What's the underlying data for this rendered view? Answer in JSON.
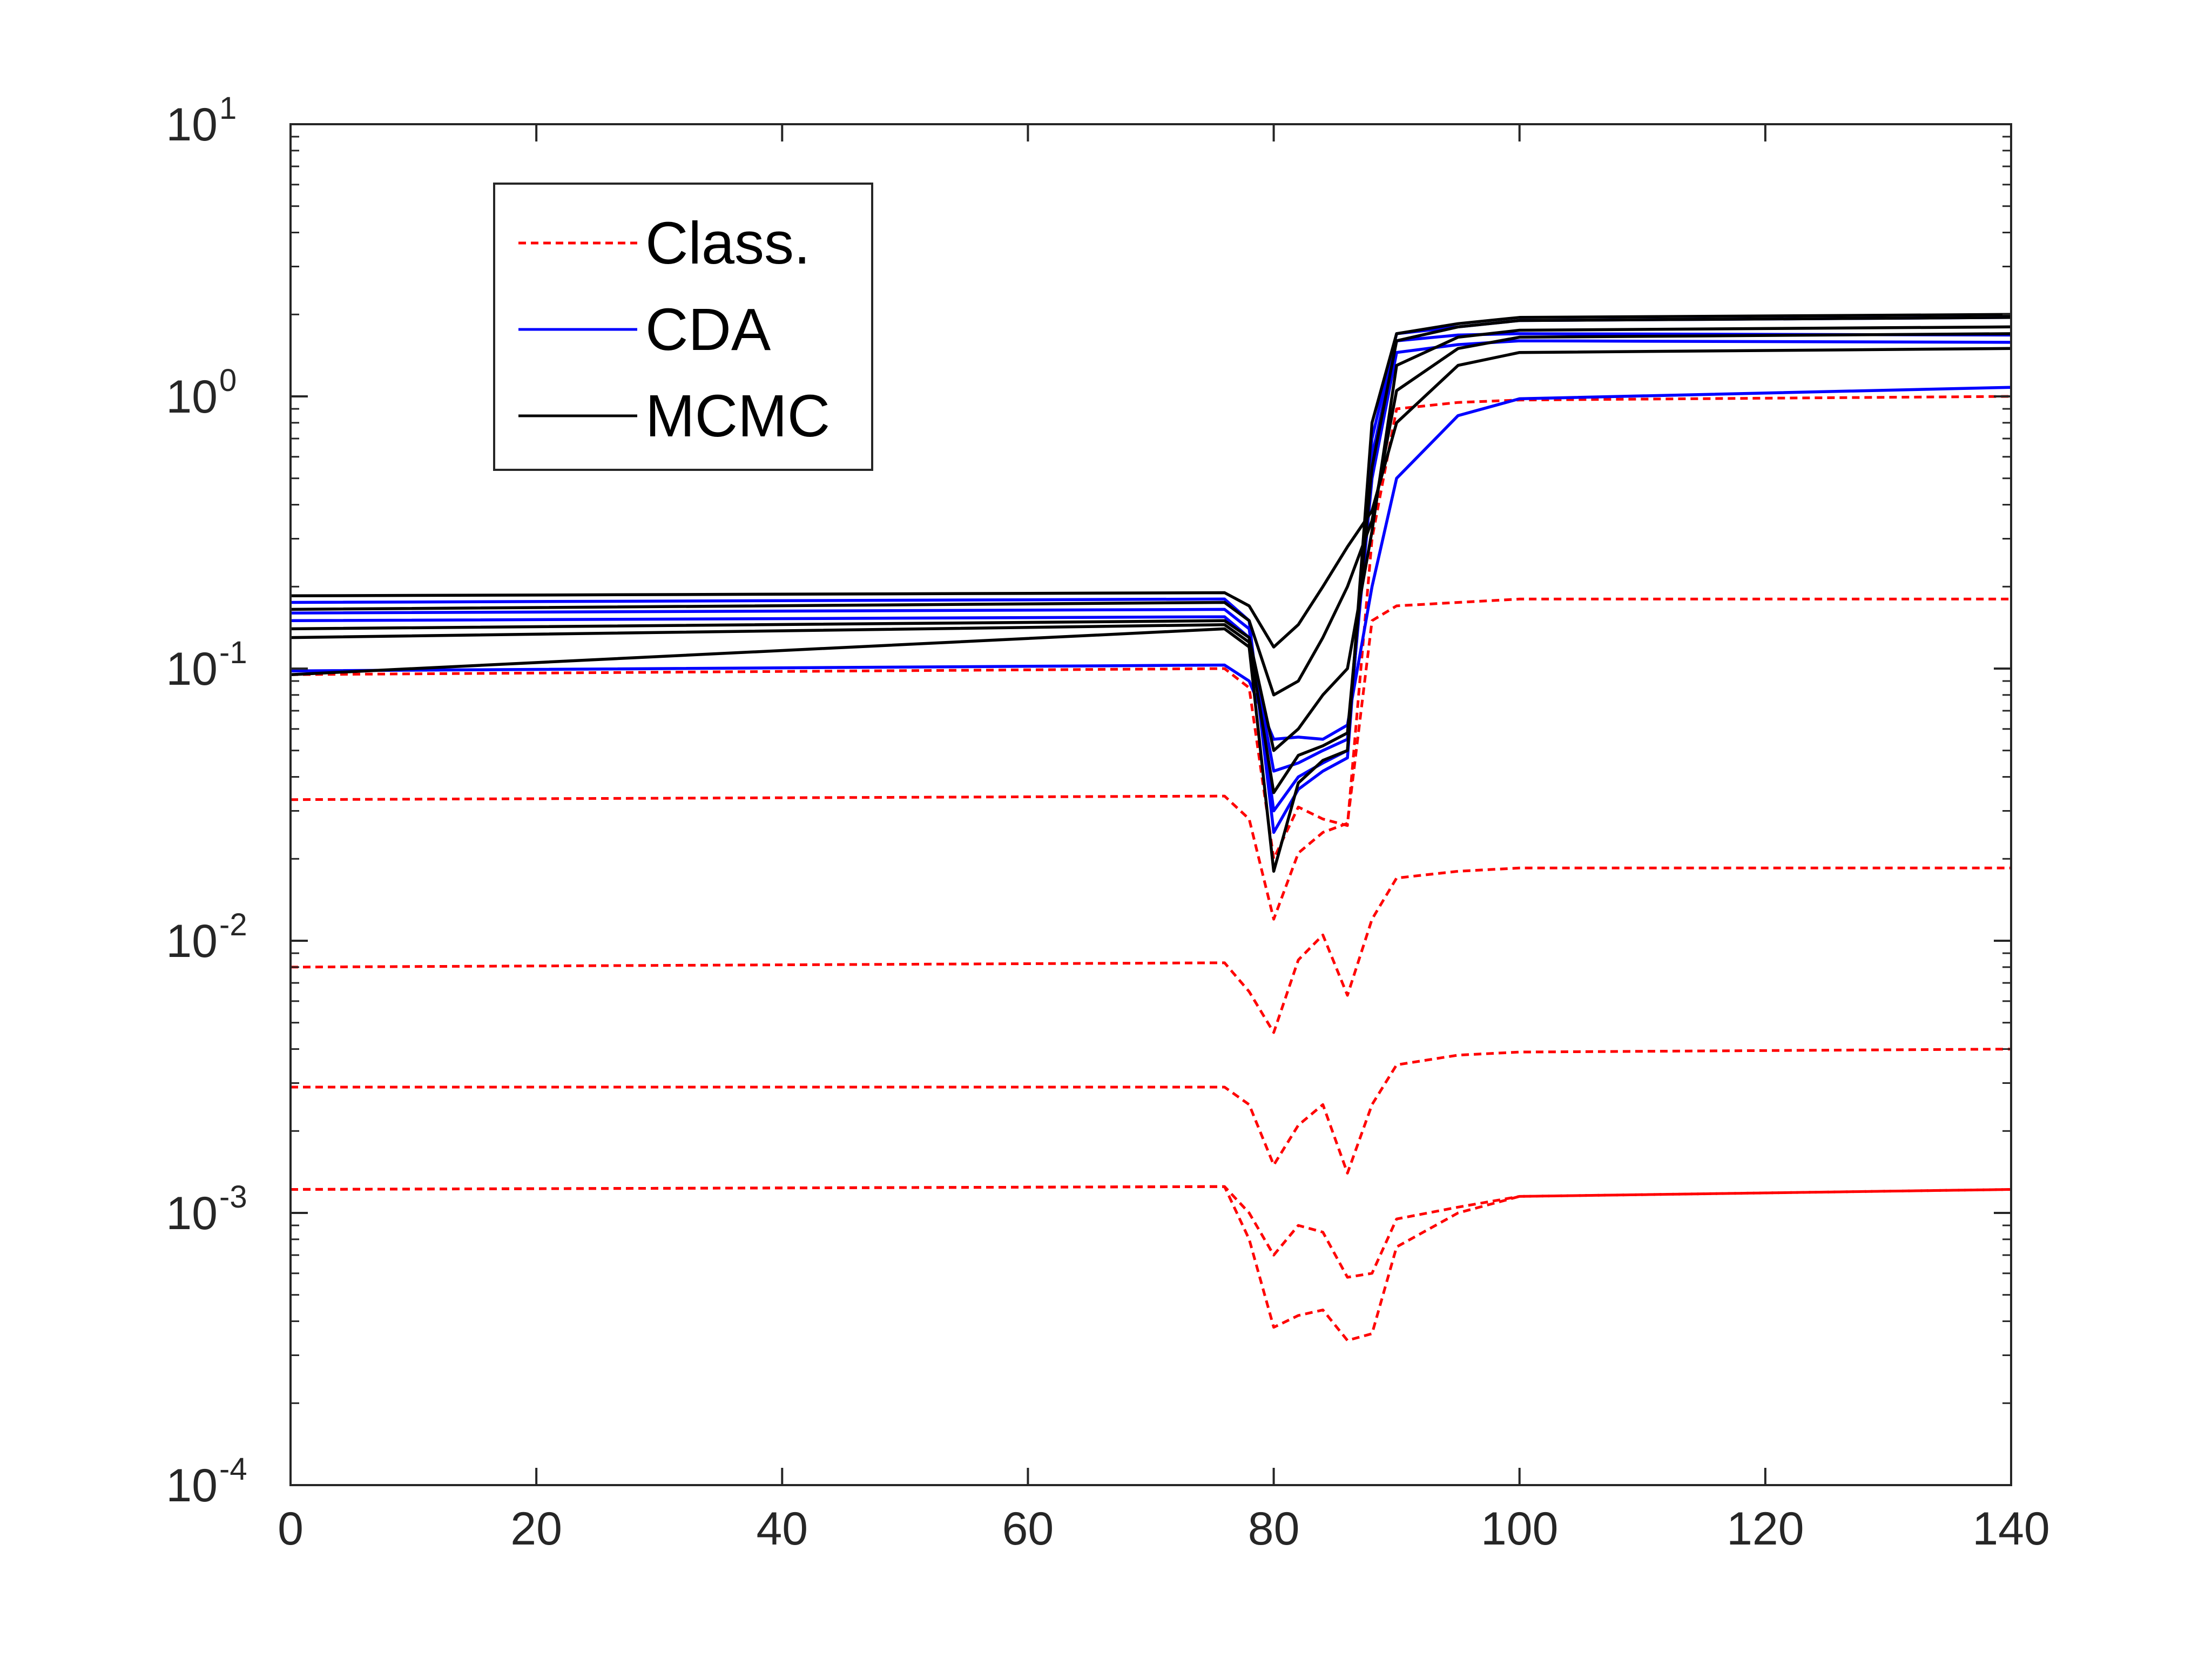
{
  "chart_data": {
    "type": "line",
    "title": "",
    "xlabel": "",
    "ylabel": "",
    "xlim": [
      0,
      140
    ],
    "ylim": [
      0.0001,
      10
    ],
    "yscale": "log",
    "grid": false,
    "legend_position": "top-left",
    "xticks": [
      0,
      20,
      40,
      60,
      80,
      100,
      120,
      140
    ],
    "xtick_labels": [
      "0",
      "20",
      "40",
      "60",
      "80",
      "100",
      "120",
      "140"
    ],
    "yticks": [
      0.0001,
      0.001,
      0.01,
      0.1,
      1,
      10
    ],
    "ytick_labels": [
      {
        "base": "10",
        "exp": "-4"
      },
      {
        "base": "10",
        "exp": "-3"
      },
      {
        "base": "10",
        "exp": "-2"
      },
      {
        "base": "10",
        "exp": "-1"
      },
      {
        "base": "10",
        "exp": "0"
      },
      {
        "base": "10",
        "exp": "1"
      }
    ],
    "legend": [
      {
        "label": "Class.",
        "color": "#ff0000",
        "style": "dashed"
      },
      {
        "label": "CDA",
        "color": "#0000ff",
        "style": "solid"
      },
      {
        "label": "MCMC",
        "color": "#000000",
        "style": "solid"
      }
    ],
    "x_keypoints": [
      0,
      76,
      78,
      80,
      82,
      84,
      86,
      88,
      90,
      95,
      100,
      140
    ],
    "series": [
      {
        "group": "Class.",
        "color": "#ff0000",
        "dash": true,
        "values": [
          0.095,
          0.1,
          0.085,
          0.02,
          0.031,
          0.028,
          0.0265,
          0.3,
          0.9,
          0.95,
          0.97,
          1.0
        ]
      },
      {
        "group": "Class.",
        "color": "#ff0000",
        "dash": true,
        "values": [
          0.033,
          0.034,
          0.028,
          0.012,
          0.021,
          0.025,
          0.027,
          0.15,
          0.17,
          0.175,
          0.18,
          0.18
        ]
      },
      {
        "group": "Class.",
        "color": "#ff0000",
        "dash": true,
        "values": [
          0.008,
          0.0083,
          0.0065,
          0.0046,
          0.0085,
          0.0105,
          0.0063,
          0.012,
          0.017,
          0.018,
          0.0185,
          0.0185
        ]
      },
      {
        "group": "Class.",
        "color": "#ff0000",
        "dash": true,
        "values": [
          0.0029,
          0.0029,
          0.0025,
          0.0015,
          0.0021,
          0.0025,
          0.0014,
          0.0025,
          0.0035,
          0.0038,
          0.0039,
          0.004
        ]
      },
      {
        "group": "Class.",
        "color": "#ff0000",
        "dash": true,
        "values": [
          0.00122,
          0.00125,
          0.001,
          0.0007,
          0.0009,
          0.00085,
          0.00058,
          0.0006,
          0.00095,
          0.00105,
          0.00115,
          0.00122
        ]
      },
      {
        "group": "Class.",
        "color": "#ff0000",
        "dash": true,
        "values": [
          0.00122,
          0.00125,
          0.0008,
          0.00038,
          0.00042,
          0.00044,
          0.00034,
          0.00036,
          0.00075,
          0.001,
          0.00115,
          0.00122
        ]
      },
      {
        "group": "CDA",
        "color": "#0000ff",
        "dash": false,
        "values": [
          0.098,
          0.103,
          0.09,
          0.055,
          0.056,
          0.055,
          0.062,
          0.2,
          0.5,
          0.85,
          0.98,
          1.08
        ]
      },
      {
        "group": "CDA",
        "color": "#0000ff",
        "dash": false,
        "values": [
          0.15,
          0.155,
          0.13,
          0.042,
          0.045,
          0.05,
          0.055,
          0.5,
          1.45,
          1.55,
          1.6,
          1.58
        ]
      },
      {
        "group": "CDA",
        "color": "#0000ff",
        "dash": false,
        "values": [
          0.16,
          0.165,
          0.14,
          0.03,
          0.04,
          0.045,
          0.05,
          0.6,
          1.6,
          1.68,
          1.7,
          1.68
        ]
      },
      {
        "group": "CDA",
        "color": "#0000ff",
        "dash": false,
        "values": [
          0.175,
          0.18,
          0.15,
          0.025,
          0.036,
          0.042,
          0.047,
          0.7,
          1.7,
          1.8,
          1.9,
          1.95
        ]
      },
      {
        "group": "MCMC",
        "color": "#000000",
        "dash": false,
        "values": [
          0.185,
          0.19,
          0.17,
          0.12,
          0.145,
          0.2,
          0.28,
          0.38,
          0.8,
          1.3,
          1.45,
          1.5
        ]
      },
      {
        "group": "MCMC",
        "color": "#000000",
        "dash": false,
        "values": [
          0.165,
          0.175,
          0.15,
          0.08,
          0.09,
          0.13,
          0.2,
          0.35,
          1.05,
          1.5,
          1.65,
          1.7
        ]
      },
      {
        "group": "MCMC",
        "color": "#000000",
        "dash": false,
        "values": [
          0.14,
          0.15,
          0.13,
          0.05,
          0.06,
          0.08,
          0.1,
          0.32,
          1.3,
          1.65,
          1.75,
          1.8
        ]
      },
      {
        "group": "MCMC",
        "color": "#000000",
        "dash": false,
        "values": [
          0.13,
          0.145,
          0.125,
          0.035,
          0.048,
          0.052,
          0.058,
          0.55,
          1.6,
          1.8,
          1.9,
          1.95
        ]
      },
      {
        "group": "MCMC",
        "color": "#000000",
        "dash": false,
        "values": [
          0.095,
          0.14,
          0.12,
          0.018,
          0.038,
          0.046,
          0.05,
          0.8,
          1.7,
          1.85,
          1.95,
          2.0
        ]
      }
    ]
  }
}
